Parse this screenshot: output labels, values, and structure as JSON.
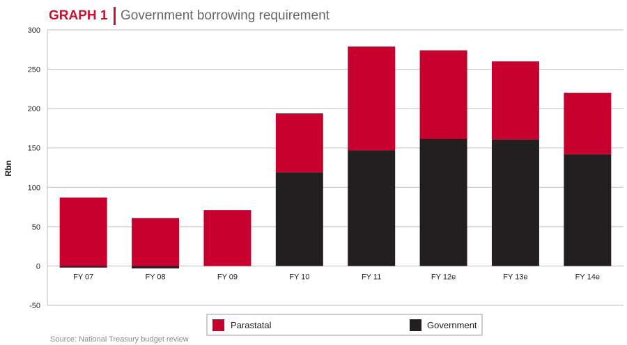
{
  "header": {
    "graph_label": "GRAPH 1",
    "title": "Government borrowing requirement"
  },
  "source": "Source: National Treasury budget review",
  "colors": {
    "accent": "#c8102e",
    "parastatal": "#c8002d",
    "government": "#231f20",
    "grid": "#bdbdbd"
  },
  "chart_data": {
    "type": "bar",
    "stacked": true,
    "title": "Government borrowing requirement",
    "xlabel": "",
    "ylabel": "Rbn",
    "ylim": [
      -50,
      300
    ],
    "yticks": [
      300,
      250,
      200,
      150,
      100,
      50,
      0,
      -50
    ],
    "grid": true,
    "legend_position": "bottom",
    "categories": [
      "FY 07",
      "FY 08",
      "FY 09",
      "FY 10",
      "FY 11",
      "FY 12e",
      "FY 13e",
      "FY 14e"
    ],
    "series": [
      {
        "name": "Government",
        "values": [
          -2,
          -3,
          0,
          119,
          147,
          162,
          161,
          142
        ]
      },
      {
        "name": "Parastatal",
        "values": [
          87,
          61,
          71,
          75,
          132,
          112,
          99,
          78
        ]
      }
    ]
  }
}
